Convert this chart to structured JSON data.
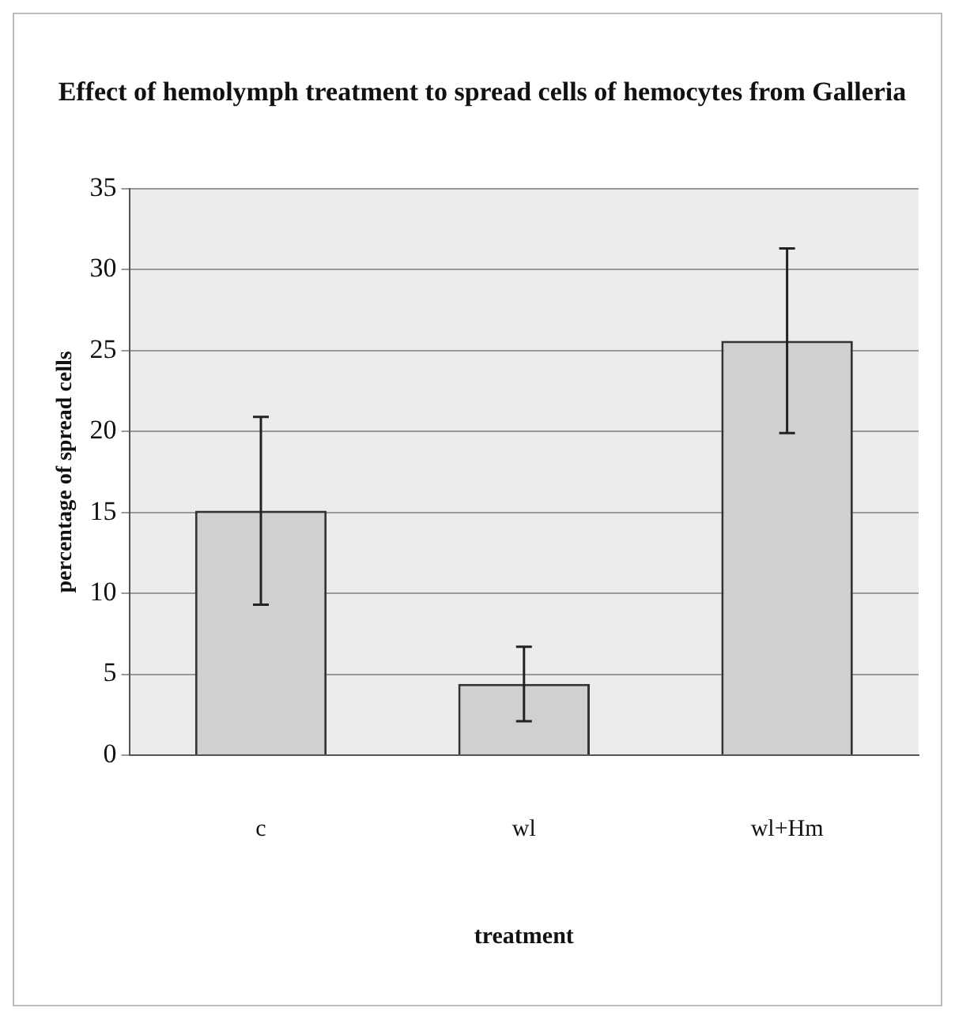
{
  "chart_data": {
    "type": "bar",
    "title": "Effect of hemolymph treatment to spread cells of hemocytes from Galleria",
    "xlabel": "treatment",
    "ylabel": "percentage of spread cells",
    "categories": [
      "c",
      "wl",
      "wl+Hm"
    ],
    "values": [
      15.1,
      4.4,
      25.6
    ],
    "errors": [
      5.8,
      2.3,
      5.7
    ],
    "color": "#d0d0d0",
    "ylim": [
      0,
      35
    ],
    "yticks": [
      0,
      5,
      10,
      15,
      20,
      25,
      30,
      35
    ],
    "grid": "y",
    "legend": false
  }
}
